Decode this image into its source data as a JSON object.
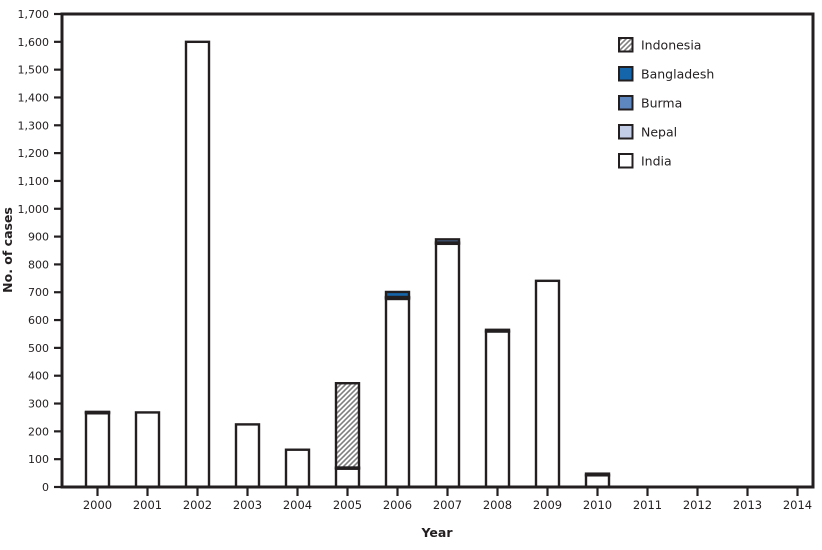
{
  "figure": {
    "background": "#ffffff",
    "axis_color": "#231f20"
  },
  "chart_data": {
    "type": "bar",
    "stacked": true,
    "xlabel": "Year",
    "ylabel": "No. of cases",
    "x_categories": [
      "2000",
      "2001",
      "2002",
      "2003",
      "2004",
      "2005",
      "2006",
      "2007",
      "2008",
      "2009",
      "2010",
      "2011",
      "2012",
      "2013",
      "2014"
    ],
    "ylim": [
      0,
      1700
    ],
    "ytick_interval": 100,
    "grid": false,
    "series": [
      {
        "name": "India",
        "fill": "#ffffff",
        "values": [
          265,
          268,
          1600,
          225,
          134,
          66,
          676,
          874,
          559,
          741,
          42,
          1,
          0,
          0,
          0
        ]
      },
      {
        "name": "Nepal",
        "fill": "#c4cde6",
        "values": [
          4,
          0,
          0,
          0,
          0,
          4,
          5,
          5,
          6,
          0,
          6,
          0,
          0,
          0,
          0
        ]
      },
      {
        "name": "Indonesia",
        "fill": "hatch",
        "values": [
          0,
          0,
          0,
          0,
          0,
          303,
          2,
          0,
          0,
          0,
          0,
          0,
          0,
          0,
          0
        ]
      },
      {
        "name": "Burma",
        "fill": "#5e86bf",
        "values": [
          0,
          0,
          0,
          0,
          0,
          0,
          0,
          11,
          0,
          0,
          0,
          0,
          0,
          0,
          0
        ]
      },
      {
        "name": "Bangladesh",
        "fill": "#1565ab",
        "values": [
          1,
          0,
          0,
          0,
          0,
          0,
          18,
          0,
          0,
          0,
          0,
          0,
          0,
          0,
          0
        ]
      }
    ],
    "totals": [
      270,
      268,
      1600,
      225,
      134,
      373,
      701,
      890,
      565,
      741,
      48,
      1,
      0,
      0,
      0
    ],
    "legend": {
      "position": "upper-right",
      "order": [
        "Indonesia",
        "Bangladesh",
        "Burma",
        "Nepal",
        "India"
      ]
    },
    "hatch": {
      "background": "#ffffff",
      "line_color": "#7f7f7f"
    }
  }
}
